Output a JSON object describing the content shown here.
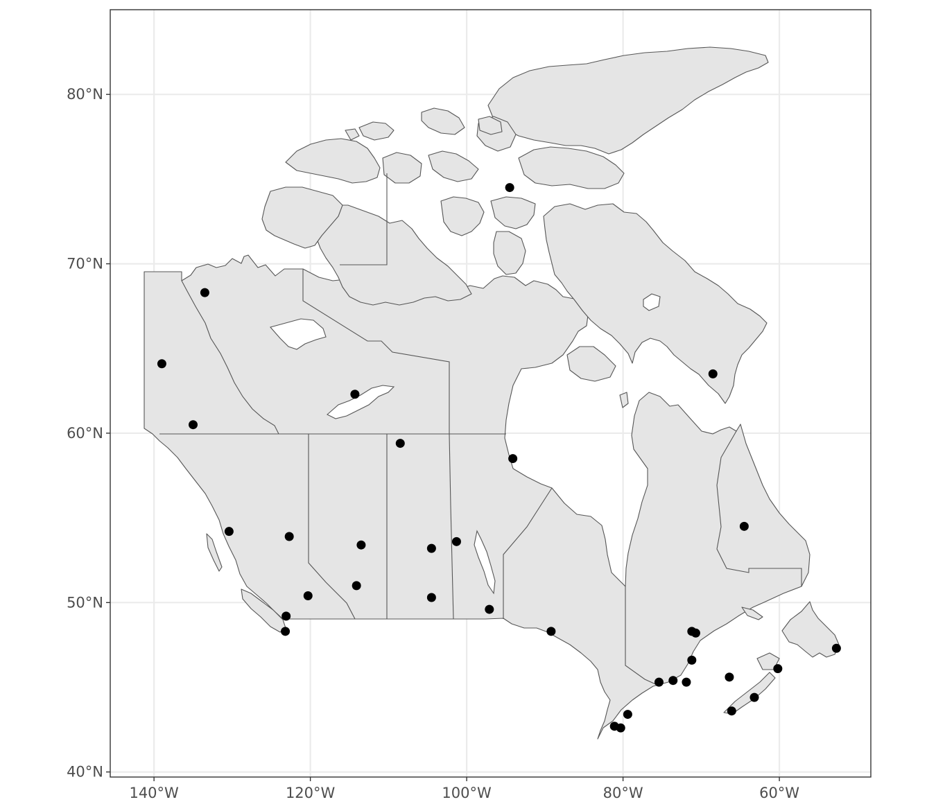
{
  "map": {
    "lon_range": [
      -145.6,
      -48.3
    ],
    "lat_range": [
      39.7,
      85.0
    ],
    "x_ticks": [
      {
        "value": -140,
        "label": "140°W"
      },
      {
        "value": -120,
        "label": "120°W"
      },
      {
        "value": -100,
        "label": "100°W"
      },
      {
        "value": -80,
        "label": "80°W"
      },
      {
        "value": -60,
        "label": "60°W"
      }
    ],
    "y_ticks": [
      {
        "value": 40,
        "label": "40°N"
      },
      {
        "value": 50,
        "label": "50°N"
      },
      {
        "value": 60,
        "label": "60°N"
      },
      {
        "value": 70,
        "label": "70°N"
      },
      {
        "value": 80,
        "label": "80°N"
      }
    ],
    "colors": {
      "land": "#e5e5e5",
      "border": "#555555",
      "points": "#000000",
      "grid": "#ebebeb",
      "frame": "#333333"
    },
    "grid": true,
    "points": [
      [
        -94.5,
        74.5
      ],
      [
        -133.5,
        68.3
      ],
      [
        -139.0,
        64.1
      ],
      [
        -135.0,
        60.5
      ],
      [
        -114.3,
        62.3
      ],
      [
        -108.5,
        59.4
      ],
      [
        -94.1,
        58.5
      ],
      [
        -68.5,
        63.5
      ],
      [
        -64.5,
        54.5
      ],
      [
        -130.4,
        54.2
      ],
      [
        -122.7,
        53.9
      ],
      [
        -113.5,
        53.4
      ],
      [
        -104.5,
        53.2
      ],
      [
        -101.3,
        53.6
      ],
      [
        -114.1,
        51.0
      ],
      [
        -120.3,
        50.4
      ],
      [
        -104.5,
        50.3
      ],
      [
        -97.1,
        49.6
      ],
      [
        -123.1,
        49.2
      ],
      [
        -123.2,
        48.3
      ],
      [
        -89.2,
        48.3
      ],
      [
        -71.2,
        48.3
      ],
      [
        -70.7,
        48.2
      ],
      [
        -71.2,
        46.6
      ],
      [
        -66.4,
        45.6
      ],
      [
        -60.2,
        46.1
      ],
      [
        -52.7,
        47.3
      ],
      [
        -75.4,
        45.3
      ],
      [
        -73.6,
        45.4
      ],
      [
        -71.9,
        45.3
      ],
      [
        -63.2,
        44.4
      ],
      [
        -66.1,
        43.6
      ],
      [
        -79.4,
        43.4
      ],
      [
        -81.1,
        42.7
      ],
      [
        -80.3,
        42.6
      ]
    ]
  }
}
